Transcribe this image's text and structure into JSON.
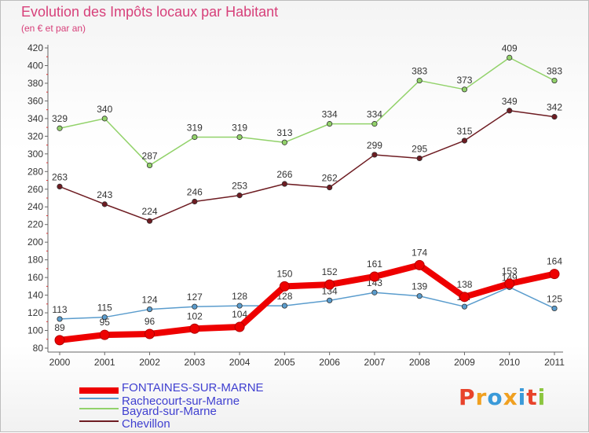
{
  "header": {
    "title": "Evolution des Impôts locaux par Habitant",
    "subtitle": "(en € et par an)"
  },
  "logo": {
    "text": "Proxiti",
    "colors": [
      "#e8432b",
      "#f0a020",
      "#3a9ad9",
      "#f0a020",
      "#3a9ad9",
      "#e8432b",
      "#8cc63f"
    ]
  },
  "chart_data": {
    "type": "line",
    "title": "Evolution des Impôts locaux par Habitant",
    "subtitle": "(en € et par an)",
    "xlabel": "",
    "ylabel": "",
    "ylim": [
      80,
      420
    ],
    "yticks": [
      80,
      100,
      120,
      140,
      160,
      180,
      200,
      220,
      240,
      260,
      280,
      300,
      320,
      340,
      360,
      380,
      400,
      420
    ],
    "grid": false,
    "legend_position": "bottom-left",
    "categories": [
      "2000",
      "2001",
      "2002",
      "2003",
      "2004",
      "2005",
      "2006",
      "2007",
      "2008",
      "2009",
      "2010",
      "2011"
    ],
    "series": [
      {
        "name": "Chevillon",
        "color": "#6e1c22",
        "values": [
          263,
          243,
          224,
          246,
          253,
          266,
          262,
          299,
          295,
          315,
          349,
          342
        ]
      },
      {
        "name": "Bayard-sur-Marne",
        "color": "#92d26a",
        "values": [
          329,
          340,
          287,
          319,
          319,
          313,
          334,
          334,
          383,
          373,
          409,
          383
        ]
      },
      {
        "name": "Rachecourt-sur-Marne",
        "color": "#5a9ccd",
        "values": [
          113,
          115,
          124,
          127,
          128,
          128,
          134,
          143,
          139,
          127,
          149,
          125
        ]
      },
      {
        "name": "FONTAINES-SUR-MARNE",
        "color": "#ee0000",
        "values": [
          89,
          95,
          96,
          102,
          104,
          150,
          152,
          161,
          174,
          138,
          153,
          164
        ]
      }
    ],
    "legend_order": [
      "FONTAINES-SUR-MARNE",
      "Rachecourt-sur-Marne",
      "Bayard-sur-Marne",
      "Chevillon"
    ]
  }
}
